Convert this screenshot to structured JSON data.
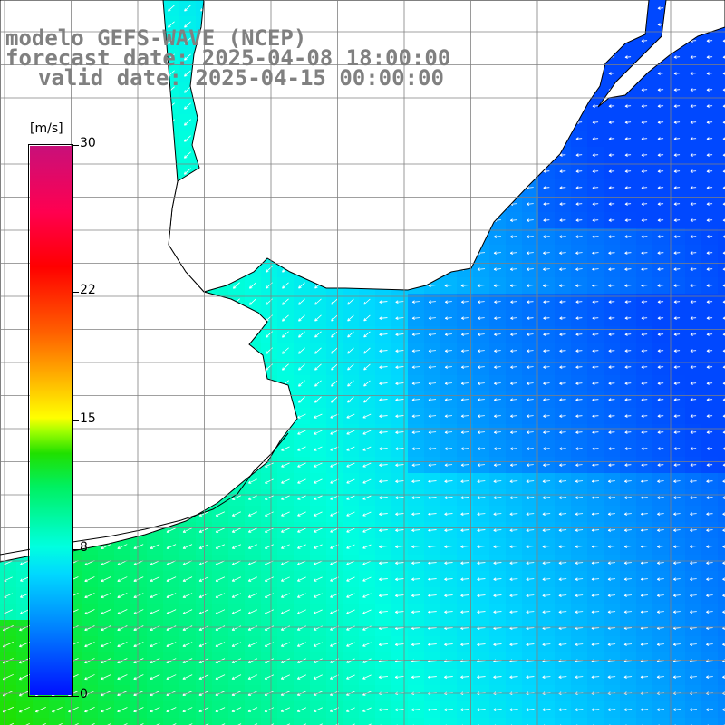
{
  "title": {
    "line1": "modelo GEFS-WAVE (NCEP)",
    "line2": "forecast date: 2025-04-08 18:00:00",
    "line3": "valid date: 2025-04-15 00:00:00"
  },
  "colorbar": {
    "unit": "[m/s]",
    "ticks": [
      {
        "label": "30",
        "value": 30
      },
      {
        "label": "22",
        "value": 22
      },
      {
        "label": "15",
        "value": 15
      },
      {
        "label": "8",
        "value": 8
      },
      {
        "label": "0",
        "value": 0
      }
    ],
    "min": 0,
    "max": 30
  },
  "map": {
    "field": "wind speed",
    "land_color": "#ffffff",
    "coastline_color": "#000000",
    "grid_color": "#808080",
    "arrow_color": "#ffffff",
    "wind_direction": "from northeast (arrows point southwest)"
  }
}
